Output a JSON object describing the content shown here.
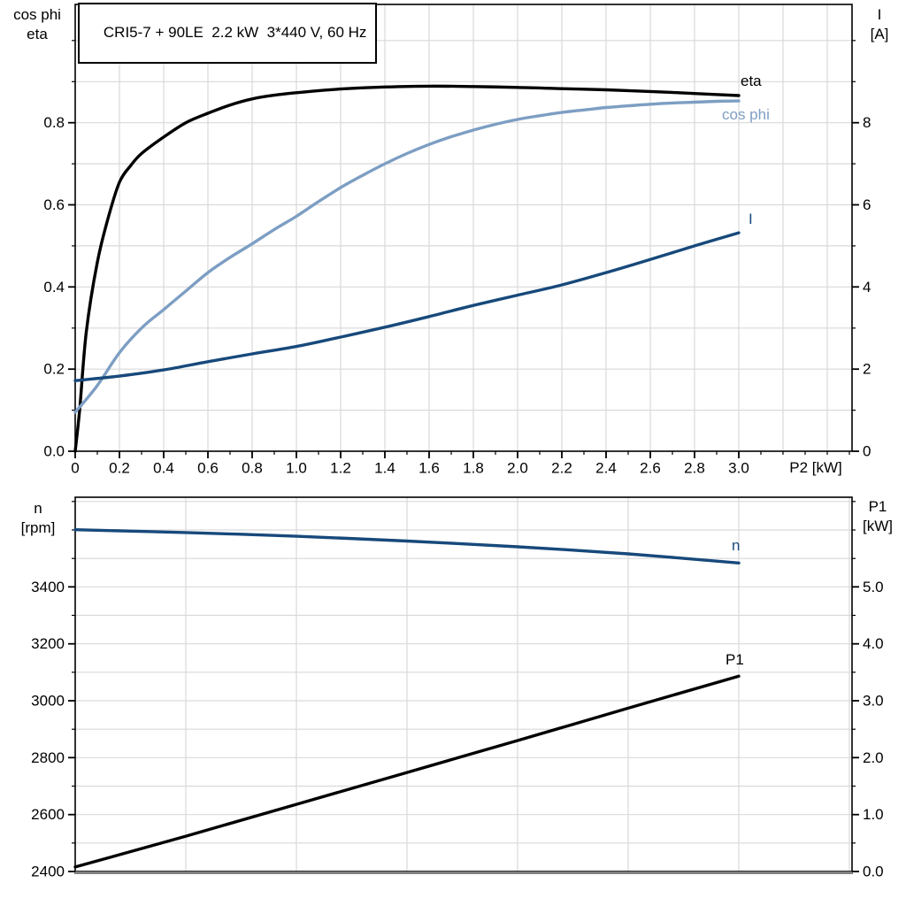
{
  "title_box": {
    "text": "CRI5-7 + 90LE  2.2 kW  3*440 V, 60 Hz"
  },
  "labels": {
    "top_left_line1": "cos phi",
    "top_left_line2": "eta",
    "top_right_line1": "I",
    "top_right_line2": "[A]",
    "x_axis": "P2 [kW]",
    "bottom_left_line1": "n",
    "bottom_left_line2": "[rpm]",
    "bottom_right_line1": "P1",
    "bottom_right_line2": "[kW]"
  },
  "curve_labels": {
    "eta": "eta",
    "cos_phi": "cos phi",
    "current": "I",
    "speed": "n",
    "power": "P1"
  },
  "colors": {
    "black": "#000000",
    "light_blue": "#7d9ec3",
    "dark_blue": "#17497b",
    "grid": "#d9d9d9",
    "frame": "#000000",
    "frame_gray": "#808080",
    "background": "#ffffff"
  },
  "chart_data": [
    {
      "type": "line",
      "title": "CRI5-7 + 90LE  2.2 kW  3*440 V, 60 Hz",
      "xlabel": "P2 [kW]",
      "x_range": [
        0,
        3.512
      ],
      "x_grid_step": 0.2,
      "x_minor_tick_step": 0.1,
      "x_major_tick_values": [
        0,
        0.2,
        0.4,
        0.6,
        0.8,
        1.0,
        1.2,
        1.4,
        1.6,
        1.8,
        2.0,
        2.2,
        2.4,
        2.6,
        2.8,
        3.0
      ],
      "x_major_tick_labels": [
        "0",
        "0.2",
        "0.4",
        "0.6",
        "0.8",
        "1.0",
        "1.2",
        "1.4",
        "1.6",
        "1.8",
        "2.0",
        "2.2",
        "2.4",
        "2.6",
        "2.8",
        "3.0"
      ],
      "left_axis": {
        "label": "cos phi / eta",
        "range": [
          0,
          1.088
        ],
        "grid_step": 0.1,
        "minor_tick_step": 0.1,
        "major_tick_values": [
          0,
          0.2,
          0.4,
          0.6,
          0.8
        ],
        "major_tick_labels": [
          "0.0",
          "0.2",
          "0.4",
          "0.6",
          "0.8"
        ]
      },
      "right_axis": {
        "label": "I [A]",
        "range": [
          0,
          10.88
        ],
        "minor_tick_step": 1,
        "major_tick_values": [
          0,
          2,
          4,
          6,
          8
        ],
        "major_tick_labels": [
          "0",
          "2",
          "4",
          "6",
          "8"
        ]
      },
      "legend_position": "end-of-curve",
      "grid": true,
      "series": [
        {
          "name": "eta",
          "axis": "left",
          "color_key": "black",
          "points": [
            [
              0,
              0
            ],
            [
              0.02,
              0.1
            ],
            [
              0.05,
              0.29
            ],
            [
              0.1,
              0.46
            ],
            [
              0.15,
              0.57
            ],
            [
              0.2,
              0.655
            ],
            [
              0.25,
              0.695
            ],
            [
              0.3,
              0.725
            ],
            [
              0.4,
              0.765
            ],
            [
              0.5,
              0.8
            ],
            [
              0.6,
              0.823
            ],
            [
              0.7,
              0.843
            ],
            [
              0.8,
              0.858
            ],
            [
              0.9,
              0.867
            ],
            [
              1.0,
              0.873
            ],
            [
              1.2,
              0.882
            ],
            [
              1.4,
              0.887
            ],
            [
              1.6,
              0.889
            ],
            [
              1.8,
              0.888
            ],
            [
              2.0,
              0.886
            ],
            [
              2.2,
              0.883
            ],
            [
              2.4,
              0.88
            ],
            [
              2.6,
              0.876
            ],
            [
              2.8,
              0.871
            ],
            [
              3.0,
              0.866
            ]
          ]
        },
        {
          "name": "cos phi",
          "axis": "left",
          "color_key": "light_blue",
          "points": [
            [
              0,
              0.095
            ],
            [
              0.1,
              0.16
            ],
            [
              0.2,
              0.24
            ],
            [
              0.3,
              0.3
            ],
            [
              0.4,
              0.345
            ],
            [
              0.5,
              0.39
            ],
            [
              0.6,
              0.435
            ],
            [
              0.7,
              0.472
            ],
            [
              0.8,
              0.505
            ],
            [
              0.9,
              0.54
            ],
            [
              1.0,
              0.572
            ],
            [
              1.1,
              0.608
            ],
            [
              1.2,
              0.642
            ],
            [
              1.3,
              0.672
            ],
            [
              1.4,
              0.7
            ],
            [
              1.5,
              0.725
            ],
            [
              1.6,
              0.747
            ],
            [
              1.7,
              0.766
            ],
            [
              1.8,
              0.782
            ],
            [
              1.9,
              0.796
            ],
            [
              2.0,
              0.808
            ],
            [
              2.1,
              0.817
            ],
            [
              2.2,
              0.825
            ],
            [
              2.3,
              0.831
            ],
            [
              2.4,
              0.837
            ],
            [
              2.5,
              0.841
            ],
            [
              2.6,
              0.845
            ],
            [
              2.7,
              0.848
            ],
            [
              2.8,
              0.85
            ],
            [
              2.9,
              0.852
            ],
            [
              3.0,
              0.853
            ]
          ]
        },
        {
          "name": "I",
          "axis": "right",
          "color_key": "dark_blue",
          "points": [
            [
              0,
              1.72
            ],
            [
              0.2,
              1.83
            ],
            [
              0.4,
              1.98
            ],
            [
              0.6,
              2.18
            ],
            [
              0.8,
              2.37
            ],
            [
              1.0,
              2.55
            ],
            [
              1.2,
              2.78
            ],
            [
              1.4,
              3.02
            ],
            [
              1.6,
              3.28
            ],
            [
              1.8,
              3.55
            ],
            [
              2.0,
              3.8
            ],
            [
              2.2,
              4.05
            ],
            [
              2.4,
              4.35
            ],
            [
              2.6,
              4.67
            ],
            [
              2.8,
              5.0
            ],
            [
              3.0,
              5.32
            ]
          ]
        }
      ]
    },
    {
      "type": "line",
      "title": "",
      "xlabel": "",
      "x_range": [
        0,
        3.512
      ],
      "x_grid_step": 0.5,
      "x_minor_tick_step": 0,
      "x_major_tick_values": [],
      "x_major_tick_labels": [],
      "left_axis": {
        "label": "n [rpm]",
        "range": [
          2400,
          3715
        ],
        "grid_step": 100,
        "minor_tick_step": 100,
        "major_tick_values": [
          2400,
          2600,
          2800,
          3000,
          3200,
          3400
        ],
        "major_tick_labels": [
          "2400",
          "2600",
          "2800",
          "3000",
          "3200",
          "3400"
        ]
      },
      "right_axis": {
        "label": "P1 [kW]",
        "range": [
          0,
          6.575
        ],
        "minor_tick_step": 0.5,
        "major_tick_values": [
          0,
          1,
          2,
          3,
          4,
          5
        ],
        "major_tick_labels": [
          "0.0",
          "1.0",
          "2.0",
          "3.0",
          "4.0",
          "5.0"
        ]
      },
      "legend_position": "end-of-curve",
      "grid": true,
      "series": [
        {
          "name": "n",
          "axis": "left",
          "color_key": "dark_blue",
          "points": [
            [
              0,
              3601
            ],
            [
              0.5,
              3591
            ],
            [
              1.0,
              3578
            ],
            [
              1.5,
              3561
            ],
            [
              2.0,
              3541
            ],
            [
              2.5,
              3516
            ],
            [
              3.0,
              3484
            ]
          ]
        },
        {
          "name": "P1",
          "axis": "right",
          "color_key": "black",
          "points": [
            [
              0,
              0.08
            ],
            [
              0.5,
              0.62
            ],
            [
              1.0,
              1.18
            ],
            [
              1.5,
              1.74
            ],
            [
              2.0,
              2.3
            ],
            [
              2.5,
              2.87
            ],
            [
              3.0,
              3.43
            ]
          ]
        }
      ]
    }
  ]
}
